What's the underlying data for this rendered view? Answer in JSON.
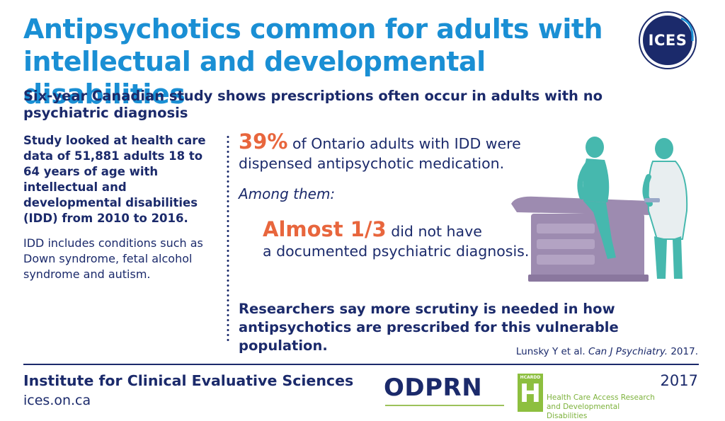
{
  "header": {
    "title_line1": "Antipsychotics common for adults with",
    "title_line2": "intellectual and developmental disabilities",
    "subtitle": "Six-year Canadian study shows prescriptions often occur in adults with no psychiatric diagnosis",
    "logo_text": "ICES"
  },
  "left": {
    "study_text": "Study looked at health care data of 51,881 adults 18 to 64 years of age with intellectual and developmental disabilities (IDD) from 2010 to 2016.",
    "idd_text": "IDD includes conditions such as Down syndrome, fetal alcohol syndrome and autism."
  },
  "stats": {
    "stat1_value": "39%",
    "stat1_text": " of Ontario adults with IDD were dispensed antipsychotic medication.",
    "among": "Among them:",
    "stat2_value": "Almost 1/3",
    "stat2_text_line1": " did not have",
    "stat2_text_line2": "a documented psychiatric diagnosis."
  },
  "conclusion": "Researchers say more scrutiny is needed in how antipsychotics are prescribed for this vulnerable population.",
  "citation": {
    "authors": "Lunsky Y et al. ",
    "journal": "Can J Psychiatry.",
    "year": " 2017."
  },
  "footer": {
    "institute": "Institute for Clinical Evaluative Sciences",
    "website": "ices.on.ca",
    "odprn": "ODPRN",
    "hcardd_small": "HCARDD",
    "hcardd_letter": "H",
    "hcardd_line1": "Health Care Access Research",
    "hcardd_line2": "and Developmental Disabilities",
    "year": "2017"
  },
  "colors": {
    "title_blue": "#1a8fd4",
    "navy": "#1b2a6b",
    "orange": "#e8663d",
    "teal": "#46b8ae",
    "purple": "#9d8bb0",
    "green": "#8dbf3f"
  }
}
